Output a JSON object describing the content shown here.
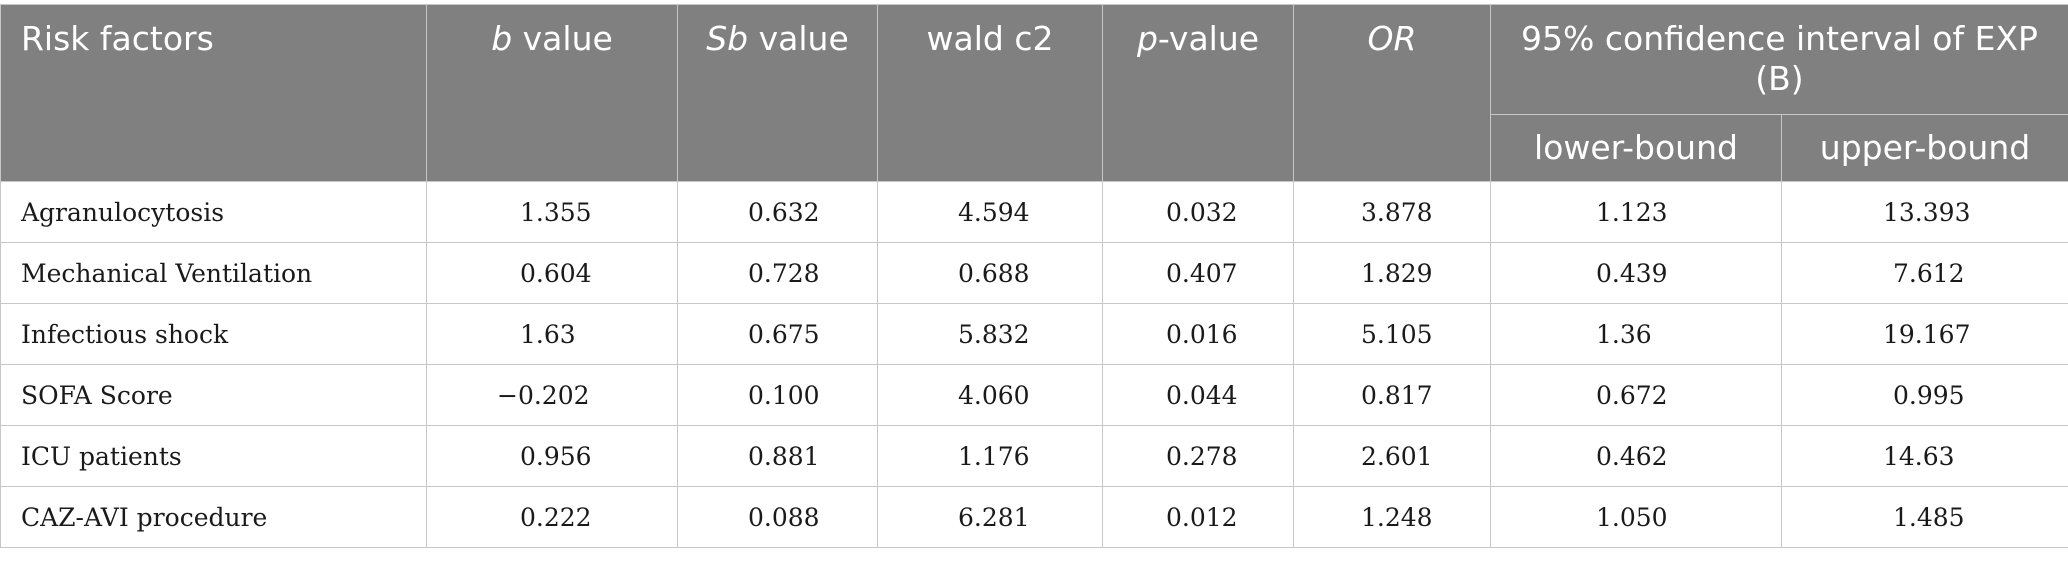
{
  "table": {
    "headers": {
      "risk_factors": "Risk factors",
      "b_italic": "b",
      "b_rest": " value",
      "sb_italic": "Sb",
      "sb_rest": " value",
      "wald": "wald c2",
      "p_italic": "p",
      "p_rest": "-value",
      "or": "OR",
      "ci": "95% confidence interval of EXP (B)",
      "lower": "lower-bound",
      "upper": "upper-bound"
    },
    "rows": [
      {
        "factor": "Agranulocytosis",
        "b": "1.355",
        "sb": "0.632",
        "wald": "4.594",
        "p": "0.032",
        "or": "3.878",
        "lower": "1.123",
        "upper": "13.393"
      },
      {
        "factor": "Mechanical Ventilation",
        "b": "0.604",
        "sb": "0.728",
        "wald": "0.688",
        "p": "0.407",
        "or": "1.829",
        "lower": "0.439",
        "upper": "7.612"
      },
      {
        "factor": "Infectious shock",
        "b": "1.63",
        "sb": "0.675",
        "wald": "5.832",
        "p": "0.016",
        "or": "5.105",
        "lower": "1.36",
        "upper": "19.167"
      },
      {
        "factor": "SOFA Score",
        "b": "−0.202",
        "sb": "0.100",
        "wald": "4.060",
        "p": "0.044",
        "or": "0.817",
        "lower": "0.672",
        "upper": "0.995"
      },
      {
        "factor": "ICU patients",
        "b": "0.956",
        "sb": "0.881",
        "wald": "1.176",
        "p": "0.278",
        "or": "2.601",
        "lower": "0.462",
        "upper": "14.63"
      },
      {
        "factor": "CAZ-AVI procedure",
        "b": "0.222",
        "sb": "0.088",
        "wald": "6.281",
        "p": "0.012",
        "or": "1.248",
        "lower": "1.050",
        "upper": "1.485"
      }
    ]
  }
}
